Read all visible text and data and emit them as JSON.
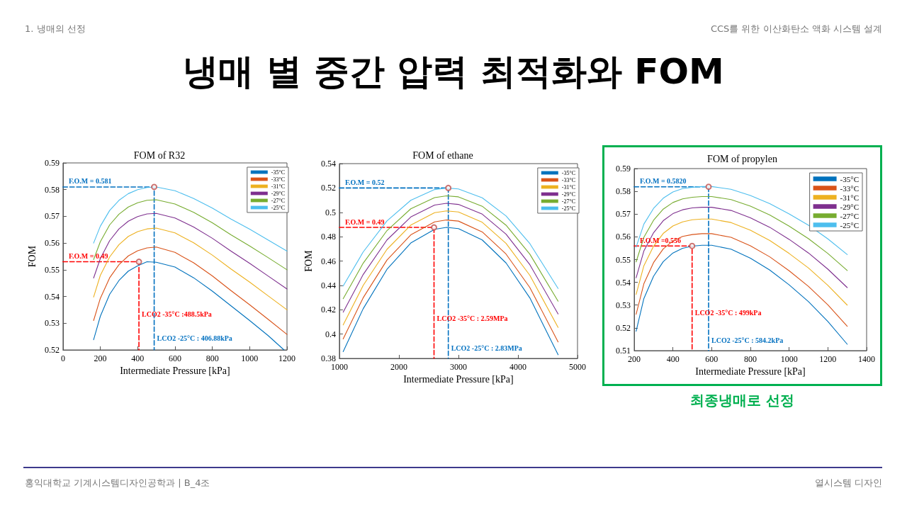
{
  "chart_data": [
    {
      "type": "other",
      "title": "냉매 별 중간 압력 최적화와 FOM",
      "annotations": [
        "1.  냉매의 선정",
        "CCS를 위한 이산화탄소 액화 시스템 설계",
        "홍익대학교 기계시스템디자인공학과 | B_4조",
        "열시스템 디자인"
      ]
    },
    {
      "type": "line",
      "title": "FOM of R32",
      "xlabel": "Intermediate Pressure [kPa]",
      "ylabel": "FOM",
      "xlim": [
        0,
        1200
      ],
      "xticks": [
        0,
        200,
        400,
        600,
        800,
        1000,
        1200
      ],
      "ylim": [
        0.52,
        0.59
      ],
      "yticks": [
        0.52,
        0.53,
        0.54,
        0.55,
        0.56,
        0.57,
        0.58,
        0.59
      ],
      "grid": false,
      "legend": "top right",
      "marker": "none",
      "line_style": "solid",
      "x": [
        164,
        200,
        250,
        300,
        350,
        400,
        450,
        500,
        600,
        700,
        800,
        900,
        1000,
        1100,
        1200
      ],
      "series": [
        {
          "name": "-35°C",
          "color": "#0072bd",
          "x": [
            164,
            200,
            250,
            300,
            350,
            400,
            450,
            500,
            600,
            700,
            800,
            900,
            1000,
            1100,
            1184
          ],
          "values": [
            0.5238,
            0.5326,
            0.5408,
            0.546,
            0.5495,
            0.5515,
            0.553,
            0.5528,
            0.551,
            0.547,
            0.542,
            0.5365,
            0.531,
            0.5253,
            0.52
          ]
        },
        {
          "name": "-33°C",
          "color": "#d95319",
          "values": [
            0.531,
            0.5393,
            0.547,
            0.5519,
            0.5552,
            0.5571,
            0.5582,
            0.5585,
            0.5565,
            0.5526,
            0.5477,
            0.5422,
            0.5369,
            0.5314,
            0.5258
          ]
        },
        {
          "name": "-31°C",
          "color": "#edb120",
          "values": [
            0.5398,
            0.5479,
            0.5548,
            0.5594,
            0.5625,
            0.5643,
            0.5653,
            0.5656,
            0.5638,
            0.5601,
            0.5555,
            0.5503,
            0.5454,
            0.5402,
            0.535
          ]
        },
        {
          "name": "-29°C",
          "color": "#7e2f8e",
          "values": [
            0.5469,
            0.5542,
            0.5609,
            0.5653,
            0.5682,
            0.5699,
            0.5709,
            0.5711,
            0.5694,
            0.566,
            0.5618,
            0.557,
            0.5524,
            0.5476,
            0.5428
          ]
        },
        {
          "name": "-27°C",
          "color": "#77ac30",
          "values": [
            0.5538,
            0.5605,
            0.5668,
            0.5708,
            0.5735,
            0.5751,
            0.576,
            0.5762,
            0.5746,
            0.5715,
            0.5676,
            0.5631,
            0.5589,
            0.5545,
            0.55
          ]
        },
        {
          "name": "-25°C",
          "color": "#4dbeee",
          "values": [
            0.56,
            0.5663,
            0.5722,
            0.576,
            0.5785,
            0.58,
            0.5808,
            0.581,
            0.5796,
            0.5767,
            0.5731,
            0.569,
            0.5652,
            0.5611,
            0.557
          ]
        },
        {
          "type": "line",
          "color": "#ff0000",
          "line_style": "dashed",
          "x": [
            0,
            406.88,
            406.88
          ],
          "values": [
            0.553,
            0.553,
            0.52
          ]
        },
        {
          "type": "line",
          "color": "#0070c0",
          "line_style": "dashed",
          "x": [
            0,
            488.5,
            488.5
          ],
          "values": [
            0.581,
            0.581,
            0.52
          ]
        },
        {
          "type": "scatter",
          "marker": "circle",
          "color": "#c0504d",
          "x": [
            406.88,
            488.5
          ],
          "values": [
            0.553,
            0.581
          ]
        }
      ],
      "annotations": [
        {
          "text": "F.O.M = 0.581",
          "x": 0,
          "y": 0.581
        },
        {
          "text": "F.O.M = 0.49",
          "x": 0,
          "y": 0.553
        },
        {
          "text": "LCO2 -35°C :488.5kPa",
          "x": 406.88,
          "y": 0.5334
        },
        {
          "text": "LCO2 -25°C : 406.88kPa",
          "x": 488.5,
          "y": 0.5244
        }
      ]
    },
    {
      "type": "line",
      "title": "FOM of ethane",
      "xlabel": "Intermediate Pressure [kPa]",
      "ylabel": "FOM",
      "xlim": [
        1000,
        5000
      ],
      "xticks": [
        1000,
        2000,
        3000,
        4000,
        5000
      ],
      "ylim": [
        0.38,
        0.54
      ],
      "yticks": [
        0.38,
        0.4,
        0.42,
        0.44,
        0.46,
        0.48,
        0.5,
        0.52,
        0.54
      ],
      "grid": false,
      "legend": "top right",
      "marker": "none",
      "line_style": "solid",
      "x": [
        1064,
        1400,
        1800,
        2200,
        2600,
        2800,
        3000,
        3400,
        3800,
        4200,
        4674
      ],
      "series": [
        {
          "name": "-35°C",
          "color": "#0072bd",
          "values": [
            0.3855,
            0.4208,
            0.4532,
            0.4748,
            0.486,
            0.4876,
            0.4866,
            0.4773,
            0.4584,
            0.4297,
            0.383
          ]
        },
        {
          "name": "-33°C",
          "color": "#d95319",
          "values": [
            0.396,
            0.4298,
            0.4608,
            0.4815,
            0.4921,
            0.4937,
            0.4928,
            0.4839,
            0.4657,
            0.4382,
            0.3935
          ]
        },
        {
          "name": "-31°C",
          "color": "#edb120",
          "values": [
            0.4075,
            0.4399,
            0.4696,
            0.4895,
            0.4997,
            0.5012,
            0.5003,
            0.4918,
            0.4745,
            0.4482,
            0.4055
          ]
        },
        {
          "name": "-29°C",
          "color": "#7e2f8e",
          "values": [
            0.418,
            0.4489,
            0.4773,
            0.4962,
            0.506,
            0.5074,
            0.5065,
            0.4985,
            0.482,
            0.457,
            0.4165
          ]
        },
        {
          "name": "-27°C",
          "color": "#77ac30",
          "values": [
            0.429,
            0.4582,
            0.485,
            0.5029,
            0.5121,
            0.5135,
            0.5127,
            0.505,
            0.4894,
            0.4656,
            0.427
          ]
        },
        {
          "name": "-25°C",
          "color": "#4dbeee",
          "values": [
            0.4395,
            0.4674,
            0.4929,
            0.5099,
            0.5187,
            0.52,
            0.5192,
            0.5119,
            0.497,
            0.4743,
            0.4375
          ]
        },
        {
          "type": "line",
          "color": "#ff0000",
          "line_style": "dashed",
          "x": [
            1000,
            2590,
            2590
          ],
          "values": [
            0.4876,
            0.4876,
            0.38
          ]
        },
        {
          "type": "line",
          "color": "#0070c0",
          "line_style": "dashed",
          "x": [
            1000,
            2830,
            2830
          ],
          "values": [
            0.52,
            0.52,
            0.38
          ]
        },
        {
          "type": "scatter",
          "marker": "circle",
          "color": "#c0504d",
          "x": [
            2590,
            2830
          ],
          "values": [
            0.4876,
            0.52
          ]
        }
      ],
      "annotations": [
        {
          "text": "F.O.M = 0.52",
          "x": 1000,
          "y": 0.52
        },
        {
          "text": "F.O.M = 0.49",
          "x": 1000,
          "y": 0.4876
        },
        {
          "text": "LCO2 -35°C : 2.59MPa",
          "x": 2590,
          "y": 0.4129
        },
        {
          "text": "LCO2 -25°C : 2.83MPa",
          "x": 2830,
          "y": 0.3886
        }
      ]
    },
    {
      "type": "line",
      "title": "FOM of propylen",
      "xlabel": "Intermediate Pressure [kPa]",
      "xlim": [
        200,
        1400
      ],
      "xticks": [
        200,
        400,
        600,
        800,
        1000,
        1200,
        1400
      ],
      "ylim": [
        0.51,
        0.59
      ],
      "yticks": [
        0.51,
        0.52,
        0.53,
        0.54,
        0.55,
        0.56,
        0.57,
        0.58,
        0.59
      ],
      "grid": false,
      "legend": "top right",
      "marker": "none",
      "line_style": "solid",
      "x": [
        210,
        250,
        300,
        350,
        400,
        450,
        500,
        550,
        600,
        700,
        800,
        900,
        1000,
        1100,
        1200,
        1300
      ],
      "series": [
        {
          "name": "-35°C",
          "color": "#0072bd",
          "values": [
            0.5185,
            0.5329,
            0.5427,
            0.5491,
            0.5529,
            0.555,
            0.5559,
            0.5563,
            0.5563,
            0.5546,
            0.5506,
            0.5454,
            0.5389,
            0.5315,
            0.5228,
            0.5128
          ]
        },
        {
          "name": "-33°C",
          "color": "#d95319",
          "values": [
            0.526,
            0.5394,
            0.5487,
            0.5547,
            0.5582,
            0.5602,
            0.561,
            0.5614,
            0.5614,
            0.5598,
            0.5561,
            0.5512,
            0.5451,
            0.5382,
            0.5301,
            0.5207
          ]
        },
        {
          "name": "-31°C",
          "color": "#edb120",
          "values": [
            0.5347,
            0.5473,
            0.5559,
            0.5615,
            0.5648,
            0.5666,
            0.5675,
            0.5678,
            0.5678,
            0.5663,
            0.5629,
            0.5584,
            0.5527,
            0.5463,
            0.5387,
            0.53
          ]
        },
        {
          "name": "-29°C",
          "color": "#7e2f8e",
          "values": [
            0.542,
            0.5538,
            0.5618,
            0.5671,
            0.5702,
            0.5719,
            0.5727,
            0.573,
            0.573,
            0.5716,
            0.5684,
            0.5642,
            0.5589,
            0.5529,
            0.5458,
            0.5377
          ]
        },
        {
          "name": "-27°C",
          "color": "#77ac30",
          "values": [
            0.549,
            0.5598,
            0.5673,
            0.5722,
            0.5751,
            0.5767,
            0.5774,
            0.5777,
            0.5777,
            0.5764,
            0.5735,
            0.5696,
            0.5647,
            0.5592,
            0.5527,
            0.5452
          ]
        },
        {
          "name": "-25°C",
          "color": "#4dbeee",
          "values": [
            0.5555,
            0.5656,
            0.5725,
            0.577,
            0.5797,
            0.5812,
            0.5818,
            0.5821,
            0.5821,
            0.5809,
            0.5782,
            0.5746,
            0.5701,
            0.5651,
            0.5591,
            0.5522
          ]
        },
        {
          "type": "line",
          "color": "#ff0000",
          "line_style": "dashed",
          "x": [
            200,
            499,
            499
          ],
          "values": [
            0.556,
            0.556,
            0.51
          ]
        },
        {
          "type": "line",
          "color": "#0070c0",
          "line_style": "dashed",
          "x": [
            200,
            584.2,
            584.2
          ],
          "values": [
            0.582,
            0.582,
            0.51
          ]
        },
        {
          "type": "scatter",
          "marker": "circle",
          "color": "#c0504d",
          "x": [
            499,
            584.2
          ],
          "values": [
            0.556,
            0.582
          ]
        }
      ],
      "annotations": [
        {
          "text": "F.O.M = 0.5820",
          "x": 200,
          "y": 0.582
        },
        {
          "text": "F.O.M =0.556",
          "x": 200,
          "y": 0.556
        },
        {
          "text": "LCO2 -35°C : 499kPa",
          "x": 499,
          "y": 0.5267
        },
        {
          "text": "LCO2 -25°C : 584.2kPa",
          "x": 584.2,
          "y": 0.5144
        },
        "최종냉매로 선정"
      ]
    }
  ]
}
